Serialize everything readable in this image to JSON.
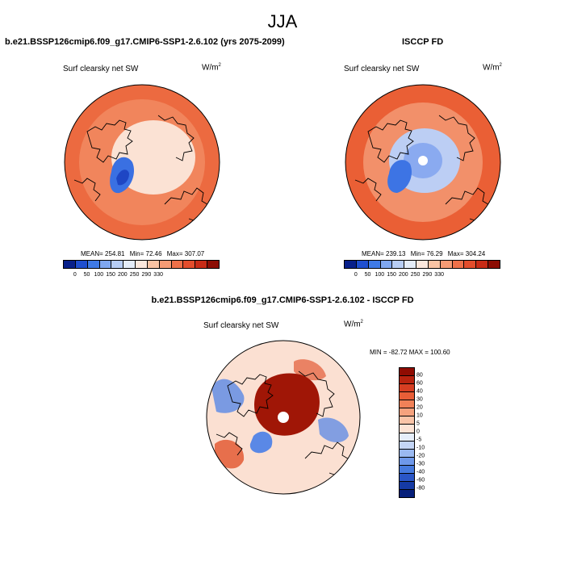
{
  "season": "JJA",
  "panels": {
    "model": {
      "title": "b.e21.BSSP126cmip6.f09_g17.CMIP6-SSP1-2.6.102 (yrs 2075-2099)",
      "variable": "Surf clearsky net SW",
      "unit_base": "W/m",
      "unit_exp": "2",
      "stats": {
        "mean": "MEAN= 254.81",
        "min": "Min=  72.46",
        "max": "Max= 307.07"
      }
    },
    "obs": {
      "title": "ISCCP FD",
      "variable": "Surf clearsky net SW",
      "unit_base": "W/m",
      "unit_exp": "2",
      "stats": {
        "mean": "MEAN= 239.13",
        "min": "Min=  76.29",
        "max": "Max= 304.24"
      }
    },
    "diff": {
      "title": "b.e21.BSSP126cmip6.f09_g17.CMIP6-SSP1-2.6.102 - ISCCP FD",
      "variable": "Surf clearsky net SW",
      "unit_base": "W/m",
      "unit_exp": "2",
      "minmax": "MIN = -82.72  MAX = 100.60"
    }
  },
  "colorbar_main": {
    "labels": [
      "0",
      "50",
      "100",
      "150",
      "200",
      "250",
      "290",
      "330"
    ],
    "colors": [
      "#08208a",
      "#1f4fcf",
      "#3f7ae6",
      "#7fa7f0",
      "#b7cdf4",
      "#e4ecf8",
      "#fbe7dc",
      "#f9c3a4",
      "#f59b75",
      "#ee7049",
      "#e34d2c",
      "#c82b16",
      "#8c0d04"
    ]
  },
  "colorbar_diff": {
    "labels": [
      "80",
      "60",
      "40",
      "30",
      "20",
      "10",
      "5",
      "0",
      "-5",
      "-10",
      "-20",
      "-30",
      "-40",
      "-60",
      "-80"
    ],
    "colors": [
      "#8f0c02",
      "#b8230f",
      "#d63e22",
      "#e85e37",
      "#f08158",
      "#f5a27e",
      "#f9c4a8",
      "#fce3d5",
      "#e6eefa",
      "#c3d5f6",
      "#9ab9f1",
      "#6e98ea",
      "#467ade",
      "#2a56c6",
      "#153aa4",
      "#061f7a"
    ]
  },
  "maps": {
    "model": {
      "background": "#ec6a40",
      "cold_pocket": "#3a70e2",
      "ice_tone": "#fbe2d4",
      "mid_ring": "#f49268"
    },
    "obs": {
      "background": "#ea5f35",
      "cold_pocket": "#3d74e4",
      "ice_tone": "#bccef4",
      "mid_ring": "#f4a07c"
    },
    "diff": {
      "background": "#fbe0d2",
      "warm_cap": "#a01606",
      "blue_patch": "#5a88e6",
      "red_patch": "#e35a35"
    }
  }
}
